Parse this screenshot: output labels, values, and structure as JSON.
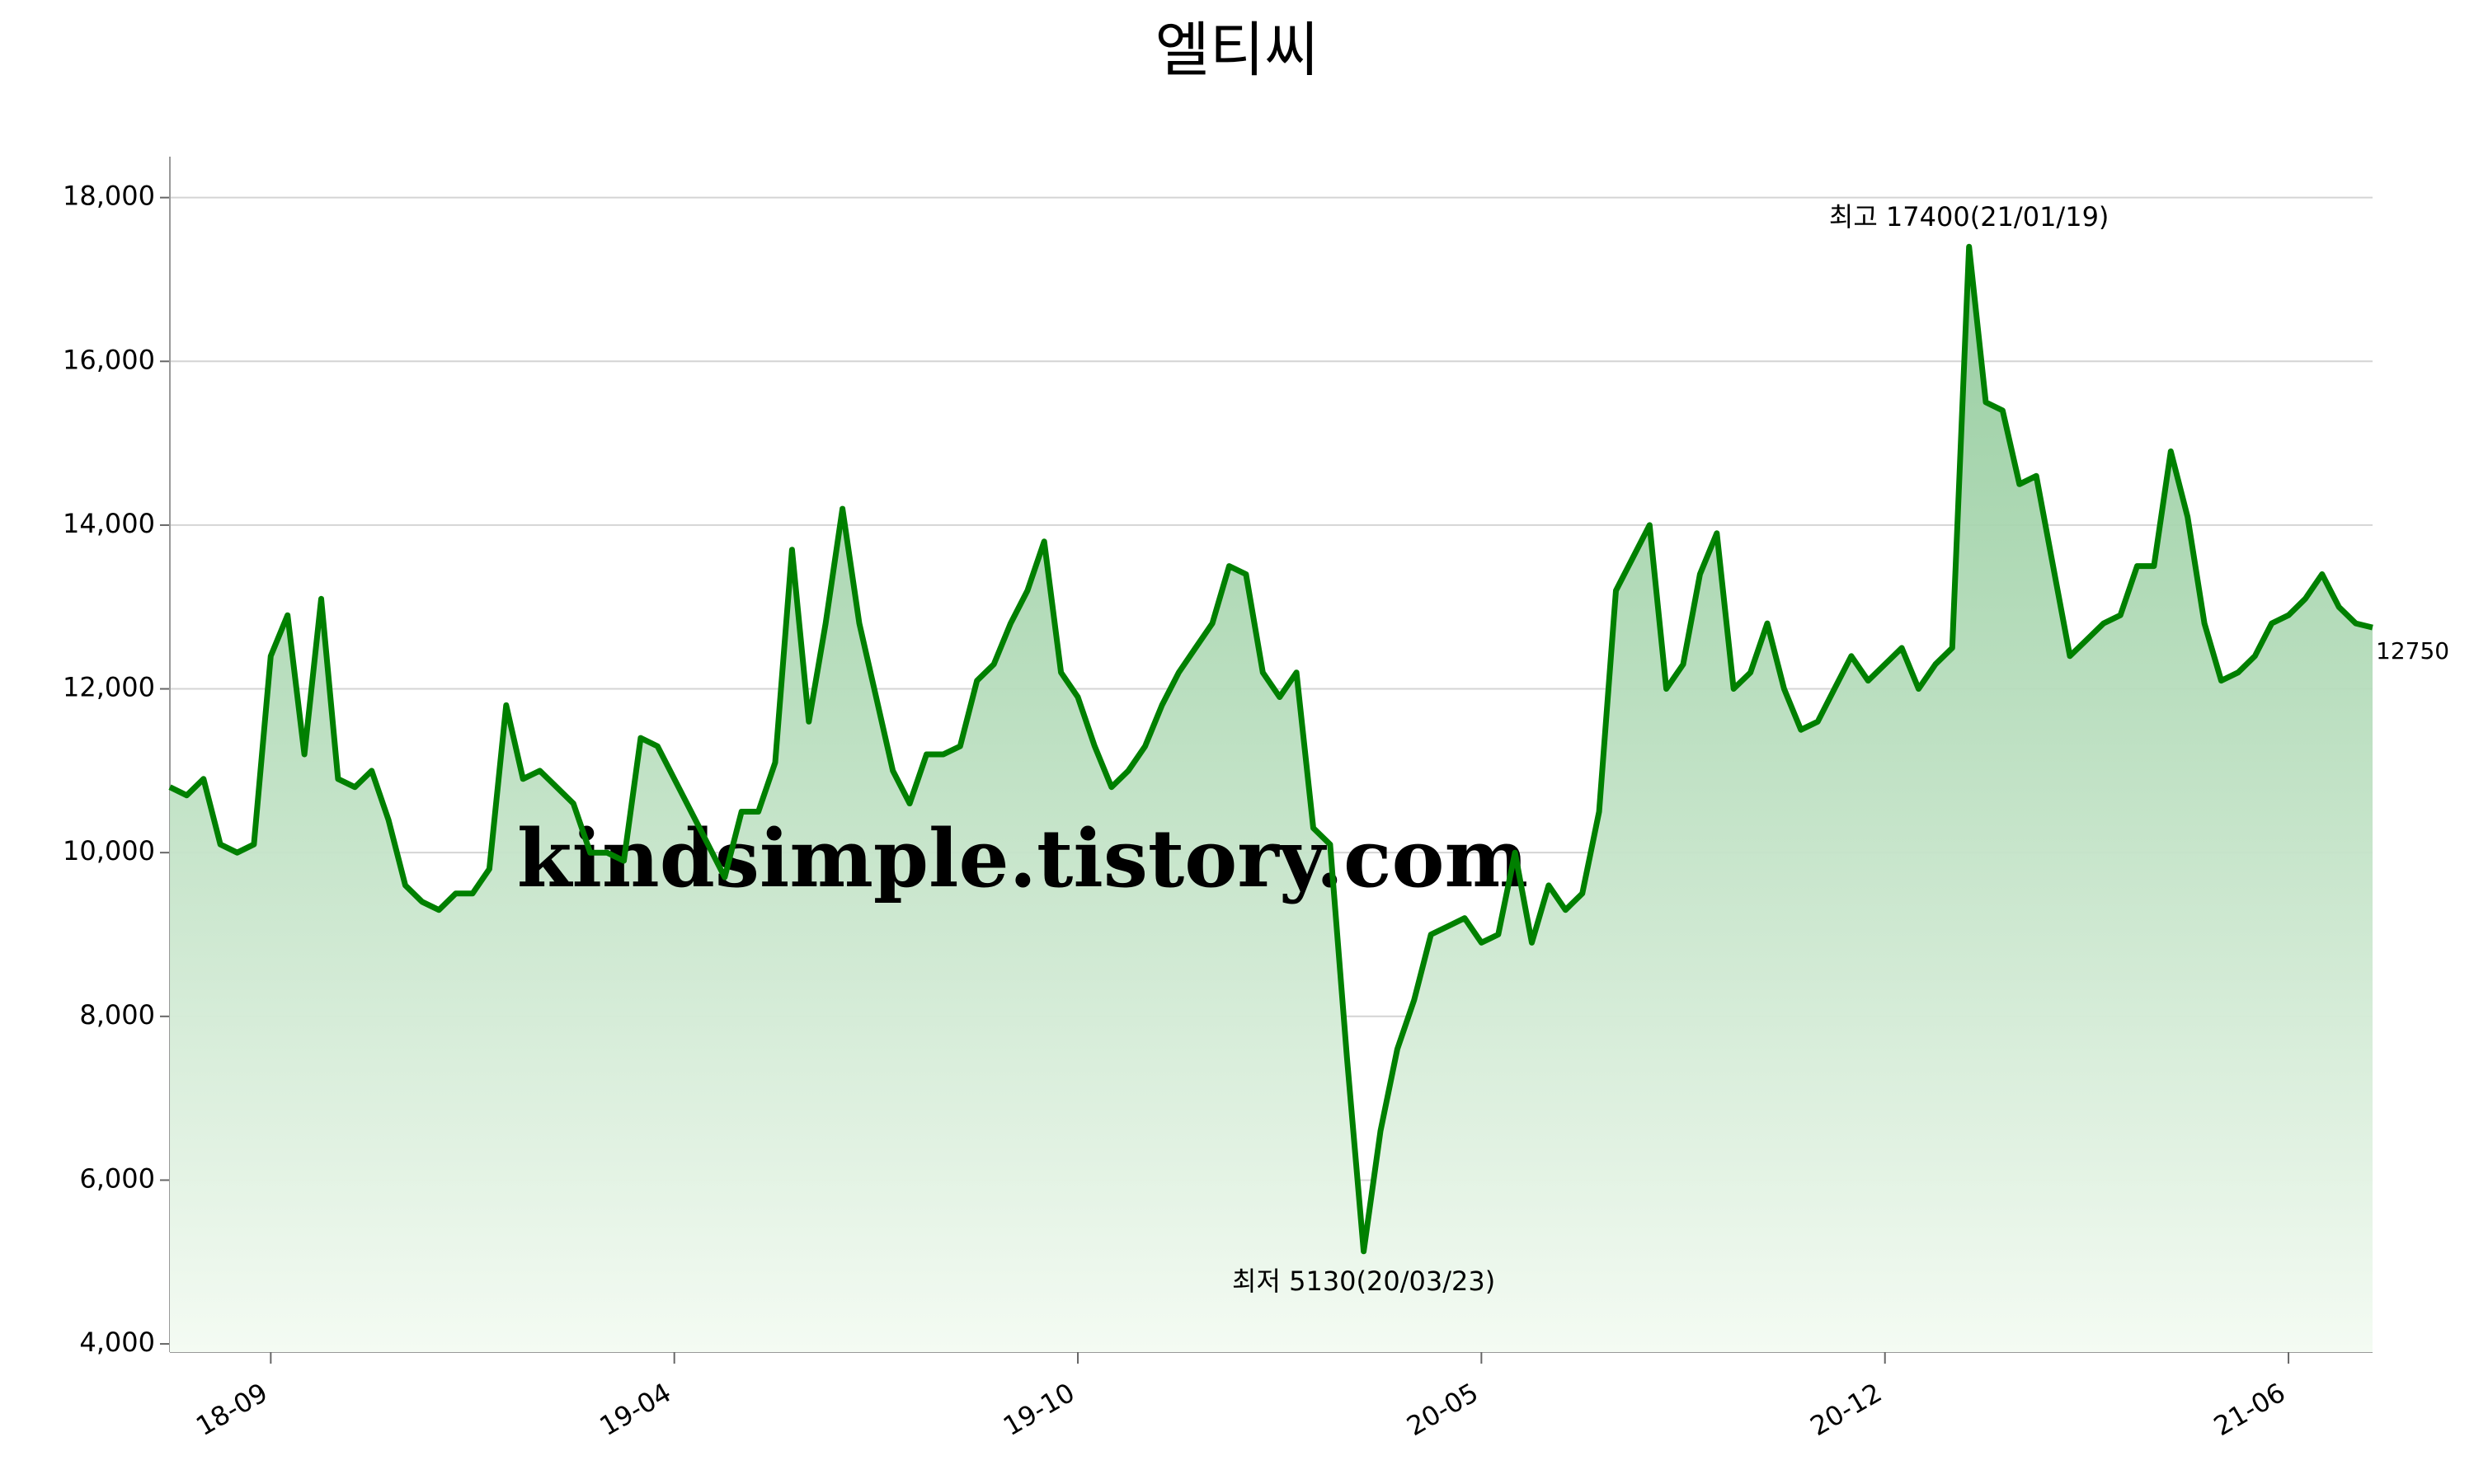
{
  "chart_data": {
    "type": "line",
    "title": "엘티씨",
    "watermark": "kindsimple.tistory.com",
    "max_label": "최고 17400(21/01/19)",
    "min_label": "최저 5130(20/03/23)",
    "categories": [
      null,
      null,
      null,
      null,
      null,
      null,
      "18-09",
      null,
      null,
      null,
      null,
      null,
      null,
      null,
      null,
      null,
      null,
      null,
      null,
      null,
      null,
      null,
      null,
      null,
      null,
      null,
      null,
      null,
      null,
      null,
      "19-04",
      null,
      null,
      null,
      null,
      null,
      null,
      null,
      null,
      null,
      null,
      null,
      null,
      null,
      null,
      null,
      null,
      null,
      null,
      null,
      null,
      null,
      null,
      null,
      "19-10",
      null,
      null,
      null,
      null,
      null,
      null,
      null,
      null,
      null,
      null,
      null,
      null,
      null,
      null,
      null,
      null,
      null,
      null,
      null,
      null,
      null,
      null,
      null,
      "20-05",
      null,
      null,
      null,
      null,
      null,
      null,
      null,
      null,
      null,
      null,
      null,
      null,
      null,
      null,
      null,
      null,
      null,
      null,
      null,
      null,
      null,
      null,
      null,
      "20-12",
      null,
      null,
      null,
      null,
      null,
      null,
      null,
      null,
      null,
      null,
      null,
      null,
      null,
      null,
      null,
      null,
      null,
      null,
      null,
      null,
      null,
      null,
      null,
      "21-06",
      null,
      null,
      null,
      null,
      null
    ],
    "series": [
      {
        "name": "엘티씨",
        "color": "#008000",
        "values": [
          10800,
          10700,
          10900,
          10100,
          10000,
          10100,
          12400,
          12900,
          11200,
          13100,
          10900,
          10800,
          11000,
          10400,
          9600,
          9400,
          9300,
          9500,
          9500,
          9800,
          11800,
          10900,
          11000,
          10800,
          10600,
          10000,
          10000,
          9900,
          11400,
          11300,
          10900,
          10500,
          10100,
          9700,
          10500,
          10500,
          11100,
          13700,
          11600,
          12800,
          14200,
          12800,
          11900,
          11000,
          10600,
          11200,
          11200,
          11300,
          12100,
          12300,
          12800,
          13200,
          13800,
          12200,
          11900,
          11300,
          10800,
          11000,
          11300,
          11800,
          12200,
          12500,
          12800,
          13500,
          13400,
          12200,
          11900,
          12200,
          10300,
          10100,
          7500,
          5130,
          6600,
          7600,
          8200,
          9000,
          9100,
          9200,
          8900,
          9000,
          10000,
          8900,
          9600,
          9300,
          9500,
          10500,
          13200,
          13600,
          14000,
          12000,
          12300,
          13400,
          13900,
          12000,
          12200,
          12800,
          12000,
          11500,
          11600,
          12000,
          12400,
          12100,
          12300,
          12500,
          12000,
          12300,
          12500,
          17400,
          15500,
          15400,
          14500,
          14600,
          13500,
          12400,
          12600,
          12800,
          12900,
          13500,
          13500,
          14900,
          14100,
          12800,
          12100,
          12200,
          12400,
          12800,
          12900,
          13100,
          13400,
          13000,
          12800,
          12750
        ]
      }
    ],
    "ylim": [
      3900,
      18500
    ],
    "yticks": [
      {
        "value": 4000,
        "label": "4,000"
      },
      {
        "value": 6000,
        "label": "6,000"
      },
      {
        "value": 8000,
        "label": "8,000"
      },
      {
        "value": 10000,
        "label": "10,000"
      },
      {
        "value": 12000,
        "label": "12,000"
      },
      {
        "value": 14000,
        "label": "14,000"
      },
      {
        "value": 16000,
        "label": "16,000"
      },
      {
        "value": 18000,
        "label": "18,000"
      }
    ],
    "grid": true,
    "max_color": "#ff0000",
    "min_color": "#0000ff",
    "watermark_color": "#e8a0ee"
  }
}
